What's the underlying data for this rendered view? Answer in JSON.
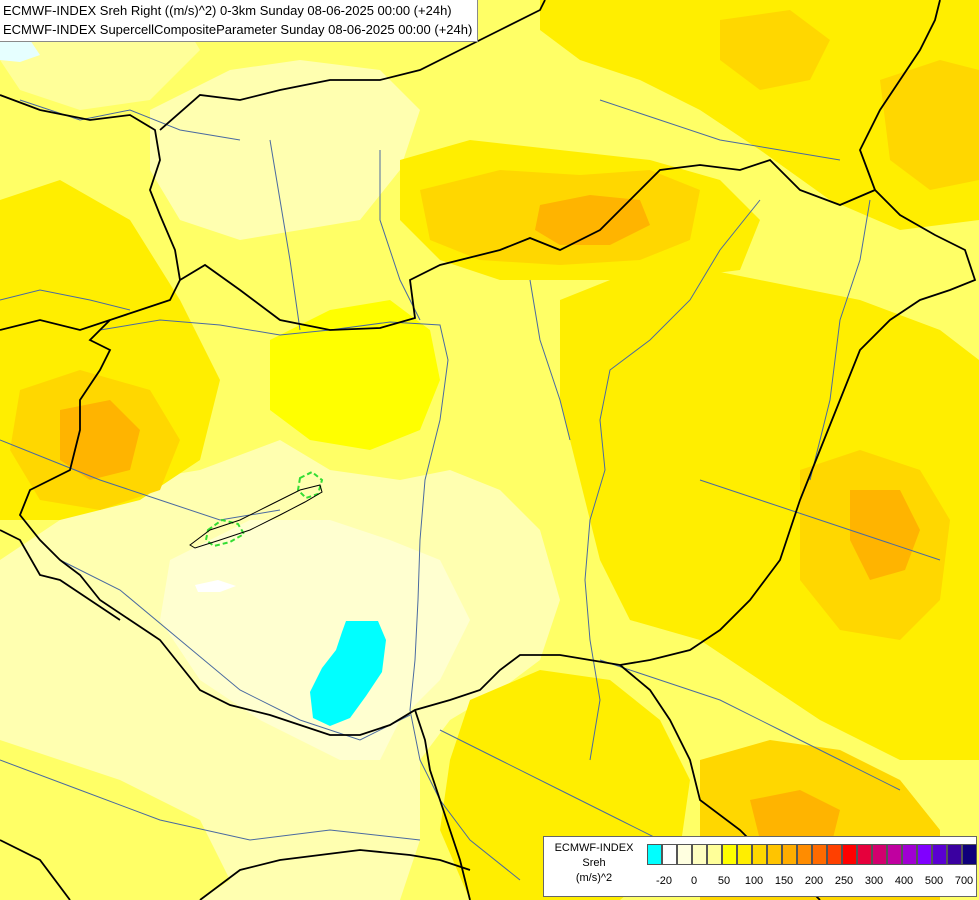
{
  "title": {
    "line1": "ECMWF-INDEX Sreh Right ((m/s)^2) 0-3km Sunday 08-06-2025 00:00 (+24h)",
    "line2": "ECMWF-INDEX SupercellCompositeParameter Sunday 08-06-2025 00:00 (+24h)"
  },
  "legend": {
    "caption_model": "ECMWF-INDEX",
    "caption_field": "Sreh",
    "caption_unit": "(m/s)^2",
    "colors": [
      "#00ffff",
      "#ffffff",
      "#ffffe0",
      "#ffffc0",
      "#ffff99",
      "#ffff00",
      "#ffee00",
      "#ffd700",
      "#ffc400",
      "#ffad00",
      "#ff8c00",
      "#ff6a00",
      "#ff4000",
      "#ff0000",
      "#e6003c",
      "#d2006e",
      "#c000a0",
      "#a000d2",
      "#8000ff",
      "#5a00d2",
      "#3a00a0",
      "#0f007a"
    ],
    "ticks": [
      "-20",
      "0",
      "50",
      "100",
      "150",
      "200",
      "250",
      "300",
      "400",
      "500",
      "700"
    ]
  },
  "map_colors": {
    "very_pale": "#ffffcc",
    "pale": "#ffff99",
    "light_yellow": "#ffff66",
    "yellow": "#ffff00",
    "gold": "#ffd700",
    "orange": "#ffb400",
    "dark_orange": "#ff9900",
    "cyan": "#00ffff",
    "border_color": "#000000",
    "river_color": "#4a6aa0",
    "scp_contour_color": "#33dd33"
  }
}
